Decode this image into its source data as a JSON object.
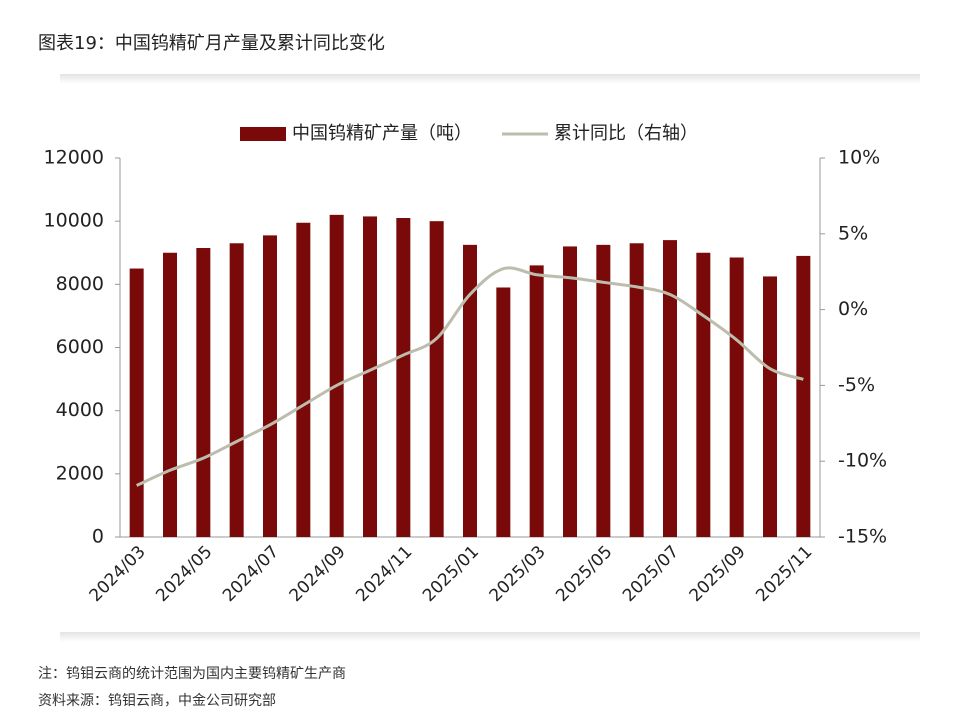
{
  "chart_data": {
    "type": "bar",
    "title": "图表19：中国钨精矿月产量及累计同比变化",
    "categories": [
      "2024/03",
      null,
      "2024/05",
      null,
      "2024/07",
      null,
      "2024/09",
      null,
      "2024/11",
      null,
      "2025/01",
      null,
      "2025/03",
      null,
      "2025/05",
      null,
      "2025/07",
      null,
      "2025/09",
      null,
      "2025/11"
    ],
    "series": [
      {
        "name": "中国钨精矿产量（吨）",
        "type": "bar",
        "color": "#7a0a0a",
        "values": [
          8500,
          9000,
          9150,
          9300,
          9550,
          9950,
          10200,
          10150,
          10100,
          10000,
          9250,
          7900,
          8600,
          9200,
          9250,
          9300,
          9400,
          9000,
          8850,
          8250,
          8900
        ]
      },
      {
        "name": "累计同比（右轴）",
        "type": "line",
        "axis": "y2",
        "color": "#bcbdac",
        "values": [
          -11.6,
          -10.6,
          -9.8,
          -8.7,
          -7.6,
          -6.3,
          -5.0,
          -4.0,
          -3.0,
          -1.9,
          1.0,
          2.7,
          2.3,
          2.1,
          1.8,
          1.5,
          1.0,
          -0.4,
          -2.0,
          -3.9,
          -4.6
        ]
      }
    ],
    "ylim": [
      0,
      12000
    ],
    "yticks": [
      0,
      2000,
      4000,
      6000,
      8000,
      10000,
      12000
    ],
    "y2lim": [
      -15,
      10
    ],
    "y2ticks": [
      {
        "value": -15,
        "label": "-15%"
      },
      {
        "value": -10,
        "label": "-10%"
      },
      {
        "value": -5,
        "label": "-5%"
      },
      {
        "value": 0,
        "label": "0%"
      },
      {
        "value": 5,
        "label": "5%"
      },
      {
        "value": 10,
        "label": "10%"
      }
    ],
    "legend": "top",
    "grid": false,
    "note": "注：钨钼云商的统计范围为国内主要钨精矿生产商",
    "source": "资料来源：钨钼云商，中金公司研究部"
  }
}
